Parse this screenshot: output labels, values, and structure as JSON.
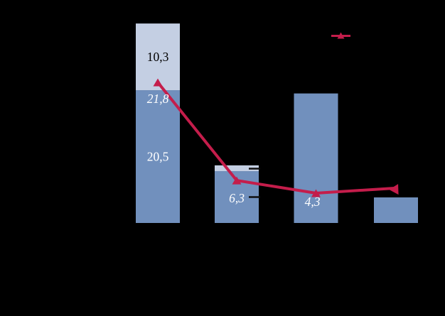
{
  "canvas": {
    "background": "#000000"
  },
  "legend": {
    "position": "top-right",
    "key_type": "line-with-triangle-marker",
    "line_color": "#C41D4B"
  },
  "chart_data": {
    "type": "combo-stacked-bar-line",
    "categories": [
      "",
      "",
      "",
      ""
    ],
    "grid": false,
    "axes_visible": false,
    "decimal_style": "comma",
    "series": [
      {
        "name": "bar-lower-segment",
        "type": "bar",
        "color": "#7190BD",
        "values": [
          20.5,
          8.0,
          20.0,
          3.95
        ],
        "labels": [
          "20,5",
          "",
          "",
          ""
        ],
        "label_color": "#FFFFFF",
        "label_style": "normal"
      },
      {
        "name": "bar-upper-segment",
        "type": "bar",
        "color": "#C4CFE3",
        "values": [
          10.3,
          0.9,
          0,
          0
        ],
        "labels": [
          "10,3",
          "",
          "",
          ""
        ],
        "label_color": "#000000",
        "label_style": "normal"
      },
      {
        "name": "line-series",
        "type": "line",
        "color": "#C41D4B",
        "marker": "triangle-up",
        "values": [
          21.8,
          6.3,
          4.3,
          5.1
        ],
        "labels": [
          "21,8",
          "6,3",
          "4,3",
          ""
        ],
        "label_color": "#FFFFFF",
        "label_style": "italic"
      }
    ],
    "visible_value_labels": [
      "10,3",
      "21,8",
      "20,5",
      "6,3",
      "4,3"
    ],
    "stray_marks": {
      "description": "two short dark label-leader dashes at right edge of second bar",
      "color": "#0F0F0F"
    }
  }
}
